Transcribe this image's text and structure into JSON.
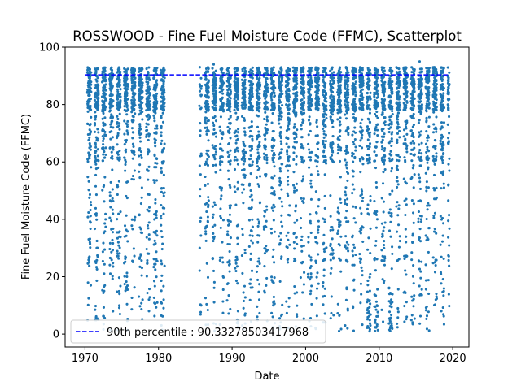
{
  "chart_data": {
    "type": "scatter",
    "title": "ROSSWOOD - Fine Fuel Moisture Code (FFMC), Scatterplot",
    "xlabel": "Date",
    "ylabel": "Fine Fuel Moisture Code (FFMC)",
    "xlim": [
      1967.3,
      2022.2
    ],
    "ylim": [
      -4.5,
      100
    ],
    "x_ticks": [
      1970,
      1980,
      1990,
      2000,
      2010,
      2020
    ],
    "y_ticks": [
      0,
      20,
      40,
      60,
      80,
      100
    ],
    "grid": false,
    "legend_position": "lower-left",
    "point_color": "#1f77b4",
    "reference_line": {
      "label": "90th percentile : 90.33278503417968",
      "value": 90.33278503417968,
      "x_range": [
        1970,
        2019.5
      ],
      "color": "#0000ff",
      "style": "dashed"
    },
    "data_gap": [
      1981,
      1985
    ],
    "series": [
      {
        "x_range": [
          1970,
          2019.5
        ],
        "density": "daily fire-season observations (approx. May to October each year), values estimated",
        "points": [
          [
            1970.4,
            85
          ],
          [
            1970.5,
            88
          ],
          [
            1970.6,
            62
          ],
          [
            1970.7,
            90
          ],
          [
            1970.8,
            45
          ],
          [
            1971.4,
            80
          ],
          [
            1971.5,
            91
          ],
          [
            1971.6,
            30
          ],
          [
            1971.7,
            87
          ],
          [
            1971.8,
            5
          ],
          [
            1972.4,
            75
          ],
          [
            1972.5,
            89
          ],
          [
            1972.6,
            15
          ],
          [
            1972.7,
            86
          ],
          [
            1972.8,
            40
          ],
          [
            1975.5,
            88
          ],
          [
            1975.7,
            20
          ],
          [
            1978.5,
            86
          ],
          [
            1978.7,
            8
          ],
          [
            1980.3,
            92
          ],
          [
            1980.5,
            60
          ],
          [
            1980.7,
            12
          ],
          [
            1985.6,
            30
          ],
          [
            1985.8,
            10
          ],
          [
            1987.5,
            94
          ],
          [
            1987.7,
            45
          ],
          [
            1990.5,
            89
          ],
          [
            1990.7,
            5
          ],
          [
            1993.5,
            92
          ],
          [
            1993.7,
            12
          ],
          [
            1995.5,
            88
          ],
          [
            1995.7,
            25
          ],
          [
            2000.5,
            91
          ],
          [
            2000.7,
            15
          ],
          [
            2005.5,
            93
          ],
          [
            2005.7,
            30
          ],
          [
            2008.5,
            90
          ],
          [
            2008.7,
            1
          ],
          [
            2009.5,
            91
          ],
          [
            2009.7,
            10
          ],
          [
            2011.5,
            88
          ],
          [
            2011.7,
            3
          ],
          [
            2015.5,
            95
          ],
          [
            2015.7,
            40
          ],
          [
            2017.5,
            93
          ],
          [
            2017.7,
            12
          ],
          [
            2019.5,
            70
          ]
        ]
      }
    ]
  }
}
